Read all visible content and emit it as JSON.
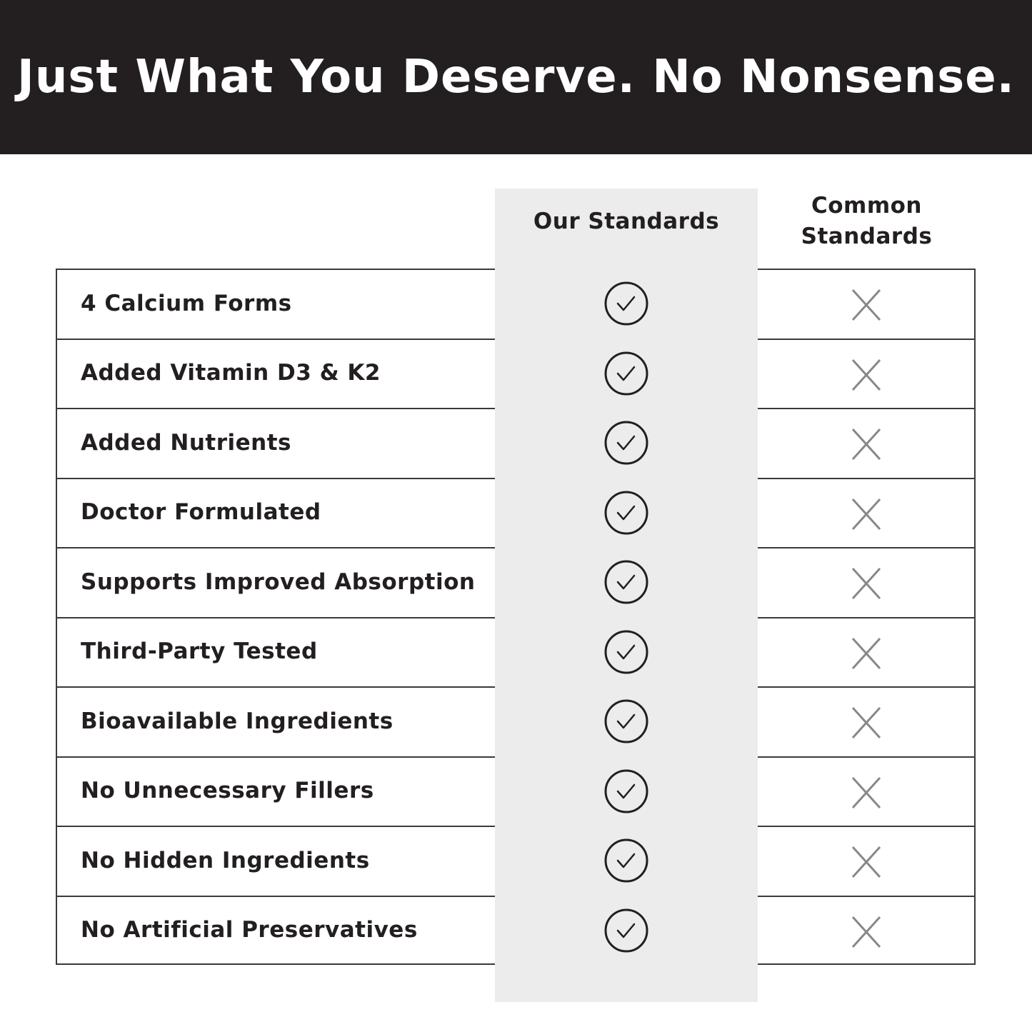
{
  "title": "Just What You Deserve. No Nonsense.",
  "columns": {
    "ours": "Our Standards",
    "common_line1": "Common",
    "common_line2": "Standards"
  },
  "colors": {
    "header_bg": "#231f20",
    "highlight_column": "#ececec",
    "cross": "#888888",
    "check": "#231f20"
  },
  "rows": [
    {
      "label": "4 Calcium Forms",
      "ours": "check-icon",
      "common": "x-icon"
    },
    {
      "label": "Added Vitamin D3 & K2",
      "ours": "check-icon",
      "common": "x-icon"
    },
    {
      "label": "Added Nutrients",
      "ours": "check-icon",
      "common": "x-icon"
    },
    {
      "label": "Doctor Formulated",
      "ours": "check-icon",
      "common": "x-icon"
    },
    {
      "label": "Supports Improved Absorption",
      "ours": "check-icon",
      "common": "x-icon"
    },
    {
      "label": "Third-Party Tested",
      "ours": "check-icon",
      "common": "x-icon"
    },
    {
      "label": "Bioavailable Ingredients",
      "ours": "check-icon",
      "common": "x-icon"
    },
    {
      "label": "No Unnecessary Fillers",
      "ours": "check-icon",
      "common": "x-icon"
    },
    {
      "label": "No Hidden Ingredients",
      "ours": "check-icon",
      "common": "x-icon"
    },
    {
      "label": "No Artificial Preservatives",
      "ours": "check-icon",
      "common": "x-icon"
    }
  ]
}
